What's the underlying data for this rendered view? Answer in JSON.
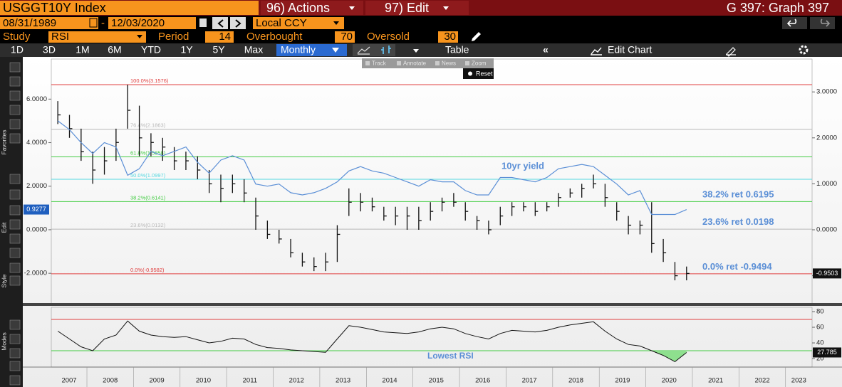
{
  "ui": {
    "ticker": "USGGT10Y Index",
    "actions": "96) Actions",
    "edit": "97) Edit",
    "graph": "G 397: Graph 397",
    "start_date": "08/31/1989",
    "date_sep": "-",
    "end_date": "12/03/2020",
    "currency": "Local CCY",
    "study_label": "Study",
    "study": "RSI",
    "period_label": "Period",
    "period": 14,
    "overbought_label": "Overbought",
    "oversold_label": "Oversold",
    "ranges": [
      "1D",
      "3D",
      "1M",
      "6M",
      "YTD",
      "1Y",
      "5Y",
      "Max"
    ],
    "frequency": "Monthly",
    "table": "Table",
    "edit_chart": "Edit Chart",
    "tools": [
      "Track",
      "Annotate",
      "News",
      "Zoom"
    ],
    "reset": "Reset",
    "sidebar": [
      "Favorites",
      "Edit",
      "Style",
      "Modes"
    ]
  },
  "chart_data": {
    "type": "ohlc",
    "x": [
      2007.375,
      2007.625,
      2007.875,
      2008.125,
      2008.375,
      2008.625,
      2008.875,
      2009.125,
      2009.375,
      2009.625,
      2009.875,
      2010.125,
      2010.375,
      2010.625,
      2010.875,
      2011.125,
      2011.375,
      2011.625,
      2011.875,
      2012.125,
      2012.375,
      2012.625,
      2012.875,
      2013.125,
      2013.375,
      2013.625,
      2013.875,
      2014.125,
      2014.375,
      2014.625,
      2014.875,
      2015.125,
      2015.375,
      2015.625,
      2015.875,
      2016.125,
      2016.375,
      2016.625,
      2016.875,
      2017.125,
      2017.375,
      2017.625,
      2017.875,
      2018.125,
      2018.375,
      2018.625,
      2018.875,
      2019.125,
      2019.375,
      2019.625,
      2019.875,
      2020.125,
      2020.375,
      2020.625,
      2020.875
    ],
    "xlim": [
      2007.235,
      2023.57
    ],
    "xticks": [
      2007,
      2008,
      2009,
      2010,
      2011,
      2012,
      2013,
      2014,
      2015,
      2016,
      2017,
      2018,
      2019,
      2020,
      2021,
      2022,
      2023
    ],
    "ylim": [
      -3.4,
      7.84
    ],
    "yticks": [
      {
        "value": -2,
        "label": "-2.0000"
      },
      {
        "value": 0,
        "label": "0.0000"
      },
      {
        "value": 2,
        "label": "2.0000"
      },
      {
        "value": 4,
        "label": "4.0000"
      },
      {
        "value": 6,
        "label": "6.0000"
      }
    ],
    "y2lim": [
      -1.61,
      3.715
    ],
    "y2ticks": [
      {
        "value": -1,
        "label": "-1.0000"
      },
      {
        "value": 0,
        "label": "0.0000"
      },
      {
        "value": 1,
        "label": "1.0000"
      },
      {
        "value": 2,
        "label": "2.0000"
      },
      {
        "value": 3,
        "label": "3.0000"
      }
    ],
    "ohlc": {
      "axis": "y2",
      "color": "#111111",
      "high": [
        2.8,
        2.5,
        2.2,
        1.7,
        1.8,
        2.2,
        3.1576,
        2.7,
        2.1,
        2.0,
        1.8,
        1.7,
        1.6,
        1.3,
        1.2,
        1.2,
        1.1,
        0.7,
        0.2,
        0.0,
        -0.2,
        -0.5,
        -0.6,
        -0.5,
        0.1,
        0.9,
        0.8,
        0.7,
        0.5,
        0.5,
        0.5,
        0.5,
        0.6,
        0.7,
        0.8,
        0.6,
        0.3,
        0.2,
        0.5,
        0.6,
        0.6,
        0.6,
        0.6,
        0.8,
        0.9,
        1.0,
        1.2,
        1.0,
        0.6,
        0.3,
        0.2,
        0.6,
        -0.2,
        -0.7,
        -0.8
      ],
      "low": [
        2.3,
        2.0,
        1.5,
        1.0,
        1.2,
        1.5,
        2.2,
        1.6,
        1.6,
        1.5,
        1.3,
        1.3,
        1.1,
        0.8,
        0.6,
        0.8,
        0.6,
        0.0,
        -0.2,
        -0.3,
        -0.6,
        -0.8,
        -0.9,
        -0.9,
        -0.7,
        0.3,
        0.4,
        0.4,
        0.2,
        0.1,
        0.0,
        0.0,
        0.2,
        0.4,
        0.5,
        0.2,
        0.0,
        -0.1,
        0.1,
        0.3,
        0.4,
        0.3,
        0.4,
        0.5,
        0.7,
        0.7,
        0.9,
        0.5,
        0.2,
        -0.1,
        -0.1,
        -0.5,
        -0.7,
        -1.1,
        -1.1
      ],
      "close": [
        2.5,
        2.2,
        1.7,
        1.3,
        1.5,
        1.9,
        2.6,
        2.0,
        1.9,
        1.8,
        1.5,
        1.5,
        1.3,
        1.0,
        0.9,
        1.0,
        0.8,
        0.3,
        -0.1,
        -0.2,
        -0.5,
        -0.7,
        -0.8,
        -0.7,
        -0.1,
        0.6,
        0.6,
        0.5,
        0.3,
        0.3,
        0.3,
        0.2,
        0.4,
        0.6,
        0.6,
        0.4,
        0.2,
        0.0,
        0.3,
        0.5,
        0.5,
        0.4,
        0.5,
        0.7,
        0.8,
        0.9,
        1.0,
        0.7,
        0.4,
        0.1,
        0.1,
        -0.3,
        -0.5,
        -1.0,
        -0.9503
      ]
    },
    "series": [
      {
        "name": "10yr yield",
        "color": "#5b8fd6",
        "values": [
          5.0,
          4.6,
          4.0,
          3.5,
          4.0,
          3.8,
          2.5,
          2.8,
          3.6,
          3.4,
          3.6,
          3.8,
          3.1,
          2.6,
          3.2,
          3.4,
          3.2,
          2.1,
          2.0,
          2.1,
          1.7,
          1.6,
          1.7,
          1.9,
          2.2,
          2.7,
          2.9,
          2.7,
          2.6,
          2.4,
          2.2,
          2.0,
          2.3,
          2.2,
          2.2,
          1.8,
          1.6,
          1.6,
          2.4,
          2.4,
          2.3,
          2.2,
          2.4,
          2.8,
          2.9,
          3.0,
          2.9,
          2.5,
          2.1,
          1.6,
          1.8,
          0.7,
          0.7,
          0.7,
          0.9277
        ]
      }
    ],
    "levels": [
      {
        "label": "100.0%(3.1576)",
        "value": 3.1576,
        "color": "#e04040"
      },
      {
        "label": "76.4%(2.1863)",
        "value": 2.1863,
        "color": "#b8b8b8"
      },
      {
        "label": "61.8%(1.5858)",
        "value": 1.5858,
        "color": "#44cc44"
      },
      {
        "label": "50.0%(1.0997)",
        "value": 1.0997,
        "color": "#55d8e0"
      },
      {
        "label": "38.2%(0.6141)",
        "value": 0.6141,
        "color": "#44cc44"
      },
      {
        "label": "23.6%(0.0132)",
        "value": 0.0132,
        "color": "#b8b8b8"
      },
      {
        "label": "0.0%(-0.9582)",
        "value": -0.9582,
        "color": "#e04040"
      }
    ],
    "annotations": [
      {
        "text": "38.2% ret 0.6195",
        "value": 0.6195
      },
      {
        "text": "23.6% ret 0.0198",
        "value": 0.0198
      },
      {
        "text": "0.0% ret -0.9494",
        "value": -0.9494
      }
    ],
    "rsi": {
      "ylim": [
        9.1,
        85.5
      ],
      "yticks": [
        20,
        40,
        60,
        80
      ],
      "overbought": 70,
      "oversold": 30,
      "color": "#111111",
      "annotation": "Lowest RSI",
      "values": [
        55,
        45,
        35,
        30,
        45,
        50,
        68,
        55,
        50,
        48,
        47,
        48,
        44,
        40,
        42,
        46,
        45,
        38,
        34,
        33,
        31,
        30,
        29,
        28,
        45,
        62,
        60,
        57,
        54,
        53,
        52,
        54,
        58,
        60,
        58,
        52,
        48,
        45,
        52,
        56,
        55,
        54,
        56,
        60,
        63,
        65,
        67,
        55,
        45,
        38,
        36,
        30,
        24,
        16,
        27.785
      ]
    }
  }
}
